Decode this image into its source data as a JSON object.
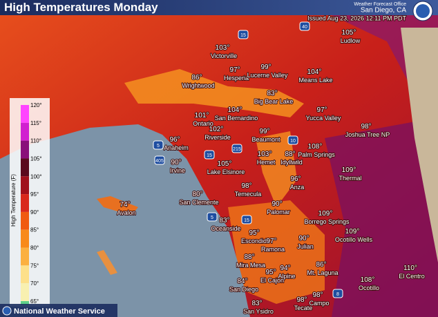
{
  "header": {
    "title": "High Temperatures Monday",
    "office": "Weather Forecast Office",
    "location": "San Diego, CA",
    "issued": "Issued Aug 23, 2026 12:11 PM PDT"
  },
  "legend": {
    "title": "High Temperature (F)",
    "ticks": [
      "120°",
      "115°",
      "110°",
      "105°",
      "100°",
      "95°",
      "90°",
      "85°",
      "80°",
      "75°",
      "70°",
      "65°"
    ]
  },
  "places": [
    {
      "temp": "105°",
      "name": "Ludlow"
    },
    {
      "temp": "103°",
      "name": "Victorville"
    },
    {
      "temp": "97°",
      "name": "Hesperia"
    },
    {
      "temp": "99°",
      "name": "Lucerne Valley"
    },
    {
      "temp": "104°",
      "name": "Means Lake"
    },
    {
      "temp": "86°",
      "name": "Wrightwood"
    },
    {
      "temp": "83°",
      "name": "Big Bear Lake"
    },
    {
      "temp": "104°",
      "name": "San Bernardino"
    },
    {
      "temp": "101°",
      "name": "Ontario"
    },
    {
      "temp": "97°",
      "name": "Yucca Valley"
    },
    {
      "temp": "98°",
      "name": "Joshua Tree NP"
    },
    {
      "temp": "102°",
      "name": "Riverside"
    },
    {
      "temp": "99°",
      "name": "Beaumont"
    },
    {
      "temp": "96°",
      "name": "Anaheim"
    },
    {
      "temp": "108°",
      "name": "Palm Springs"
    },
    {
      "temp": "103°",
      "name": "Hemet"
    },
    {
      "temp": "88°",
      "name": "Idyllwild"
    },
    {
      "temp": "90°",
      "name": "Irvine"
    },
    {
      "temp": "105°",
      "name": "Lake Elsinore"
    },
    {
      "temp": "109°",
      "name": "Thermal"
    },
    {
      "temp": "96°",
      "name": "Anza"
    },
    {
      "temp": "98°",
      "name": "Temecula"
    },
    {
      "temp": "80°",
      "name": "San Clemente"
    },
    {
      "temp": "74°",
      "name": "Avalon"
    },
    {
      "temp": "90°",
      "name": "Palomar"
    },
    {
      "temp": "109°",
      "name": "Borrego Springs"
    },
    {
      "temp": "83°",
      "name": "Oceanside"
    },
    {
      "temp": "95°",
      "name": "Escondido"
    },
    {
      "temp": "97°",
      "name": "Ramona"
    },
    {
      "temp": "109°",
      "name": "Ocotillo Wells"
    },
    {
      "temp": "90°",
      "name": "Julian"
    },
    {
      "temp": "88°",
      "name": "Mira Mesa"
    },
    {
      "temp": "94°",
      "name": "Alpine"
    },
    {
      "temp": "86°",
      "name": "Mt. Laguna"
    },
    {
      "temp": "95°",
      "name": "El Cajon"
    },
    {
      "temp": "84°",
      "name": "San Diego"
    },
    {
      "temp": "110°",
      "name": "El Centro"
    },
    {
      "temp": "108°",
      "name": "Ocotillo"
    },
    {
      "temp": "83°",
      "name": "San Ysidro"
    },
    {
      "temp": "98°",
      "name": "Tecate"
    },
    {
      "temp": "98°",
      "name": "Campo"
    }
  ],
  "highways": [
    "40",
    "15",
    "15",
    "215",
    "10",
    "5",
    "405",
    "5",
    "15",
    "8"
  ],
  "footer": "National Weather Service"
}
